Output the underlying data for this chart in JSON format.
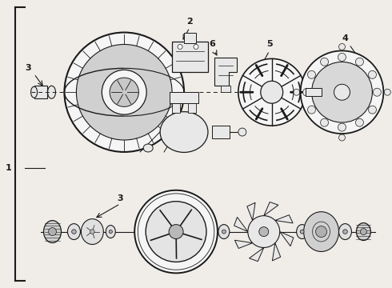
{
  "bg_color": "#f0ede8",
  "line_color": "#1a1a1a",
  "label_color": "#111111",
  "fig_w": 4.9,
  "fig_h": 3.6,
  "dpi": 100
}
